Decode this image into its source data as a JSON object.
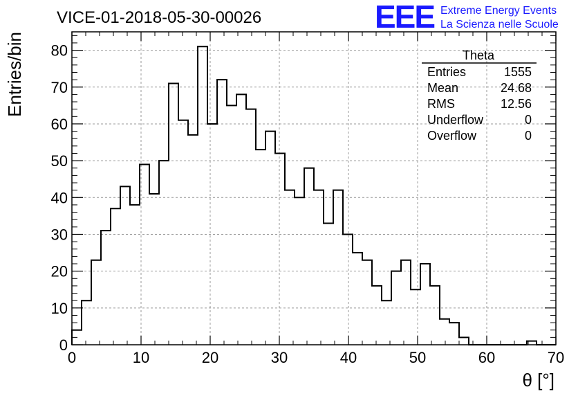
{
  "header": {
    "title": "VICE-01-2018-05-30-00026"
  },
  "logo": {
    "mark": "EEE",
    "line1": "Extreme Energy Events",
    "line2": "La Scienza nelle Scuole",
    "color": "#1a1aff"
  },
  "stats_box": {
    "title": "Theta",
    "rows": [
      {
        "label": "Entries",
        "value": "1555"
      },
      {
        "label": "Mean",
        "value": "24.68"
      },
      {
        "label": "RMS",
        "value": "12.56"
      },
      {
        "label": "Underflow",
        "value": "0"
      },
      {
        "label": "Overflow",
        "value": "0"
      }
    ]
  },
  "chart_data": {
    "type": "histogram",
    "title": "VICE-01-2018-05-30-00026",
    "xlabel": "θ [°]",
    "ylabel": "Entries/bin",
    "xlim": [
      0,
      70
    ],
    "ylim": [
      0,
      85
    ],
    "grid": true,
    "bin_width": 1.4,
    "bin_start": 0,
    "values": [
      4,
      12,
      23,
      31,
      37,
      43,
      38,
      49,
      41,
      50,
      71,
      61,
      57,
      81,
      60,
      72,
      65,
      68,
      64,
      53,
      58,
      52,
      42,
      40,
      48,
      42,
      33,
      42,
      30,
      25,
      23,
      16,
      12,
      20,
      23,
      15,
      22,
      16,
      7,
      6,
      2,
      0,
      0,
      0,
      0,
      0,
      0,
      1,
      0,
      0
    ],
    "x_ticks": [
      0,
      10,
      20,
      30,
      40,
      50,
      60,
      70
    ],
    "y_ticks": [
      0,
      10,
      20,
      30,
      40,
      50,
      60,
      70,
      80
    ],
    "line_color": "#000000",
    "grid_color": "#999999"
  }
}
